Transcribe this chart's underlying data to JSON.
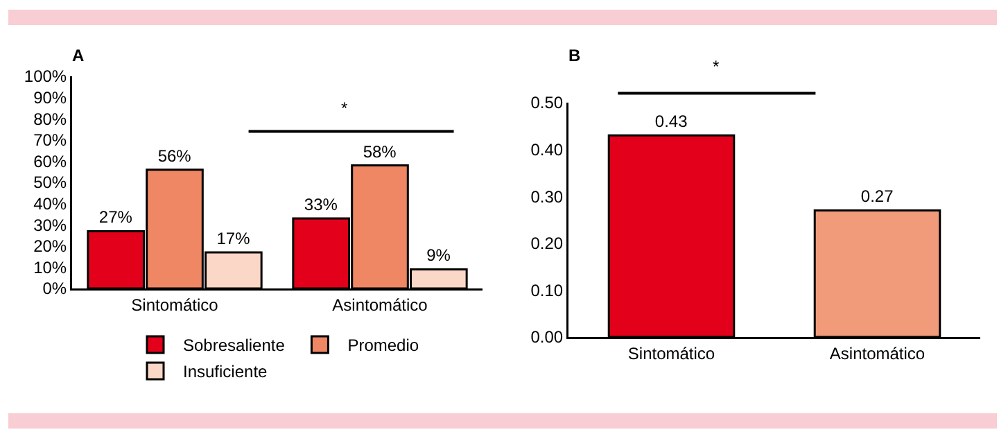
{
  "chart_data": [
    {
      "type": "bar",
      "title": "A",
      "categories": [
        "Sintomático",
        "Asintomático"
      ],
      "series": [
        {
          "name": "Sobresaliente",
          "color": "#e2001a",
          "values": [
            27,
            33
          ],
          "value_labels": [
            "27%",
            "33%"
          ]
        },
        {
          "name": "Promedio",
          "color": "#ef8764",
          "values": [
            56,
            58
          ],
          "value_labels": [
            "56%",
            "58%"
          ]
        },
        {
          "name": "Insuficiente",
          "color": "#fad7c6",
          "values": [
            17,
            9
          ],
          "value_labels": [
            "17%",
            "9%"
          ]
        }
      ],
      "ylim": [
        0,
        100
      ],
      "yticks": [
        {
          "value": 0,
          "label": "0%"
        },
        {
          "value": 10,
          "label": "10%"
        },
        {
          "value": 20,
          "label": "20%"
        },
        {
          "value": 30,
          "label": "30%"
        },
        {
          "value": 40,
          "label": "40%"
        },
        {
          "value": 50,
          "label": "50%"
        },
        {
          "value": 60,
          "label": "60%"
        },
        {
          "value": 70,
          "label": "70%"
        },
        {
          "value": 80,
          "label": "80%"
        },
        {
          "value": 90,
          "label": "90%"
        },
        {
          "value": 100,
          "label": "100%"
        }
      ],
      "legend": "bottom",
      "annotations": [
        "*"
      ]
    },
    {
      "type": "bar",
      "title": "B",
      "categories": [
        "Sintomático",
        "Asintomático"
      ],
      "values": [
        0.43,
        0.27
      ],
      "colors": [
        "#e2001a",
        "#f19b7a"
      ],
      "data_labels": true,
      "ylim": [
        0,
        0.5
      ],
      "yticks": [
        {
          "value": 0,
          "label": "0.00"
        },
        {
          "value": 0.1,
          "label": "0.10"
        },
        {
          "value": 0.2,
          "label": "0.20"
        },
        {
          "value": 0.3,
          "label": "0.30"
        },
        {
          "value": 0.4,
          "label": "0.40"
        },
        {
          "value": 0.5,
          "label": "0.50"
        }
      ],
      "annotations": [
        "*"
      ]
    }
  ]
}
